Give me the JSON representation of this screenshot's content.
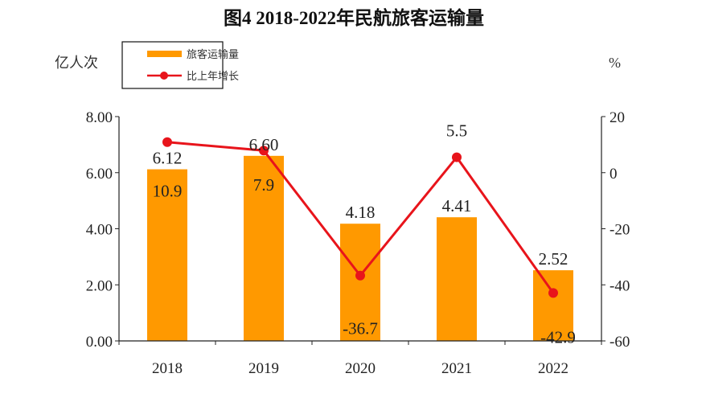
{
  "chart_data": {
    "type": "bar+line",
    "title": "图4  2018-2022年民航旅客运输量",
    "ylabel_left": "亿人次",
    "ylabel_right": "%",
    "categories": [
      "2018",
      "2019",
      "2020",
      "2021",
      "2022"
    ],
    "series": [
      {
        "name": "旅客运输量",
        "type": "bar",
        "axis": "left",
        "values": [
          6.12,
          6.6,
          4.18,
          4.41,
          2.52
        ],
        "labels": [
          "6.12",
          "6.60",
          "4.18",
          "4.41",
          "2.52"
        ],
        "color": "#FF9900"
      },
      {
        "name": "比上年增长",
        "type": "line",
        "axis": "right",
        "values": [
          10.9,
          7.9,
          -36.7,
          5.5,
          -42.9
        ],
        "labels": [
          "10.9",
          "7.9",
          "-36.7",
          "5.5",
          "-42.9"
        ],
        "color": "#E8141B"
      }
    ],
    "ylim_left": [
      0,
      8
    ],
    "yticks_left": [
      "0.00",
      "2.00",
      "4.00",
      "6.00",
      "8.00"
    ],
    "ylim_right": [
      -60,
      20
    ],
    "yticks_right": [
      "-60",
      "-40",
      "-20",
      "0",
      "20"
    ],
    "grid": false,
    "legend": "top-left"
  }
}
